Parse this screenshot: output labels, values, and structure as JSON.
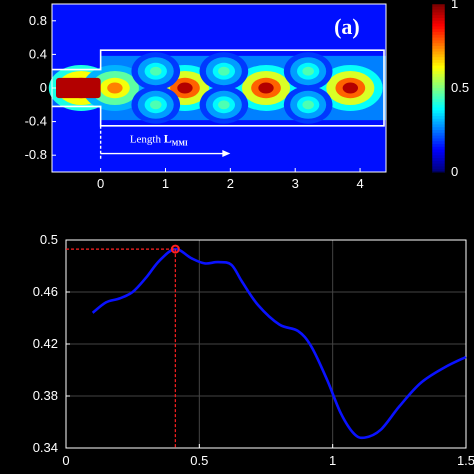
{
  "chart_data": [
    {
      "type": "heatmap",
      "panel_label": "(a)",
      "annotation": {
        "text": "Length ",
        "bold": "L",
        "sub": "MMI",
        "x_start": 0,
        "x_end": 2
      },
      "xlim": [
        -0.75,
        4.4
      ],
      "ylim": [
        -1.0,
        1.0
      ],
      "x_ticks": [
        0,
        1,
        2,
        3,
        4
      ],
      "y_ticks": [
        0.8,
        0.4,
        0,
        -0.4,
        -0.8
      ],
      "y_tick_labels": [
        "0.8",
        "0.4",
        "0",
        "-0.4",
        "-0.8"
      ],
      "colorbar": {
        "min": 0,
        "max": 1,
        "ticks": [
          0,
          0.5,
          1
        ],
        "tick_labels": [
          "0",
          "0.5",
          "1"
        ],
        "colormap": "jet"
      },
      "outline": {
        "input_waveguide": {
          "x": [
            -0.75,
            0
          ],
          "y_half_width": 0.22
        },
        "mmi_region": {
          "x": [
            0,
            4.4
          ],
          "y_half_width": 0.45
        }
      },
      "intensity_hotspots": [
        {
          "x": -0.3,
          "y": 0.0,
          "intensity": 1.0
        },
        {
          "x": 0.22,
          "y": 0.0,
          "intensity": 0.75
        },
        {
          "x": 1.3,
          "y": 0.0,
          "intensity": 0.95
        },
        {
          "x": 2.55,
          "y": 0.0,
          "intensity": 0.95
        },
        {
          "x": 3.85,
          "y": 0.0,
          "intensity": 0.95
        },
        {
          "x": 0.85,
          "y": 0.2,
          "intensity": 0.45
        },
        {
          "x": 0.85,
          "y": -0.2,
          "intensity": 0.45
        },
        {
          "x": 1.9,
          "y": 0.2,
          "intensity": 0.45
        },
        {
          "x": 1.9,
          "y": -0.2,
          "intensity": 0.45
        },
        {
          "x": 3.2,
          "y": 0.2,
          "intensity": 0.45
        },
        {
          "x": 3.2,
          "y": -0.2,
          "intensity": 0.45
        }
      ]
    },
    {
      "type": "line",
      "xlim": [
        0,
        1.5
      ],
      "ylim": [
        0.34,
        0.5
      ],
      "x_ticks": [
        0,
        0.5,
        1,
        1.5
      ],
      "x_tick_labels": [
        "0",
        "0.5",
        "1",
        "1.5"
      ],
      "y_ticks": [
        0.34,
        0.38,
        0.42,
        0.46,
        0.5
      ],
      "y_tick_labels": [
        "0.34",
        "0.38",
        "0.42",
        "0.46",
        "0.5"
      ],
      "grid": true,
      "series": [
        {
          "color": "#0a12ff",
          "x": [
            0.1,
            0.15,
            0.2,
            0.25,
            0.3,
            0.35,
            0.41,
            0.47,
            0.52,
            0.57,
            0.62,
            0.66,
            0.72,
            0.8,
            0.87,
            0.92,
            0.98,
            1.03,
            1.08,
            1.12,
            1.18,
            1.25,
            1.33,
            1.42,
            1.5
          ],
          "y": [
            0.444,
            0.452,
            0.455,
            0.46,
            0.471,
            0.484,
            0.493,
            0.486,
            0.482,
            0.483,
            0.481,
            0.468,
            0.45,
            0.435,
            0.43,
            0.418,
            0.392,
            0.367,
            0.351,
            0.348,
            0.354,
            0.372,
            0.39,
            0.402,
            0.41
          ]
        }
      ],
      "highlight": {
        "x": 0.41,
        "y": 0.493,
        "color": "#ff2020"
      }
    }
  ]
}
